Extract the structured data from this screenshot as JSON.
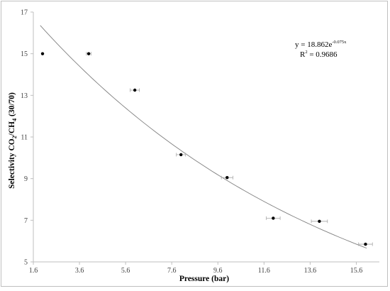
{
  "chart_data": {
    "type": "scatter",
    "xlabel": "Pressure (bar)",
    "ylabel_parts": {
      "a": "Selectivity CO",
      "b": "2",
      "c": "/CH",
      "d": "4",
      "e": " (30/70)"
    },
    "xlim": [
      1.6,
      16.6
    ],
    "ylim": [
      5,
      17
    ],
    "x_ticks": [
      1.6,
      3.6,
      5.6,
      7.6,
      9.6,
      11.6,
      13.6,
      15.6
    ],
    "y_ticks": [
      5,
      7,
      9,
      11,
      13,
      15,
      17
    ],
    "x_tick_labels": [
      "1.6",
      "3.6",
      "5.6",
      "7.6",
      "9.6",
      "11.6",
      "13.6",
      "15.6"
    ],
    "y_tick_labels": [
      "5",
      "7",
      "9",
      "11",
      "13",
      "15",
      "17"
    ],
    "points": [
      {
        "x": 2,
        "y": 15.0,
        "xerr": 0
      },
      {
        "x": 4,
        "y": 15.0,
        "xerr": 0.1
      },
      {
        "x": 6,
        "y": 13.25,
        "xerr": 0.2
      },
      {
        "x": 8,
        "y": 10.15,
        "xerr": 0.2
      },
      {
        "x": 10,
        "y": 9.05,
        "xerr": 0.25
      },
      {
        "x": 12,
        "y": 7.1,
        "xerr": 0.3
      },
      {
        "x": 14,
        "y": 6.95,
        "xerr": 0.35
      },
      {
        "x": 16,
        "y": 5.85,
        "xerr": 0.3
      }
    ],
    "trendline": {
      "type": "exponential",
      "a": 18.862,
      "b": -0.075,
      "equation_base": "y = 18.862e",
      "equation_exp": "-0.075x",
      "r2_label": "R",
      "r2_sup": "2",
      "r2_value": " = 0.9686"
    },
    "grid": false,
    "legend": "none"
  },
  "colors": {
    "point": "#000000",
    "trendline": "#808080",
    "axis": "#bfbfbf",
    "error_bar": "#a6a6a6"
  }
}
